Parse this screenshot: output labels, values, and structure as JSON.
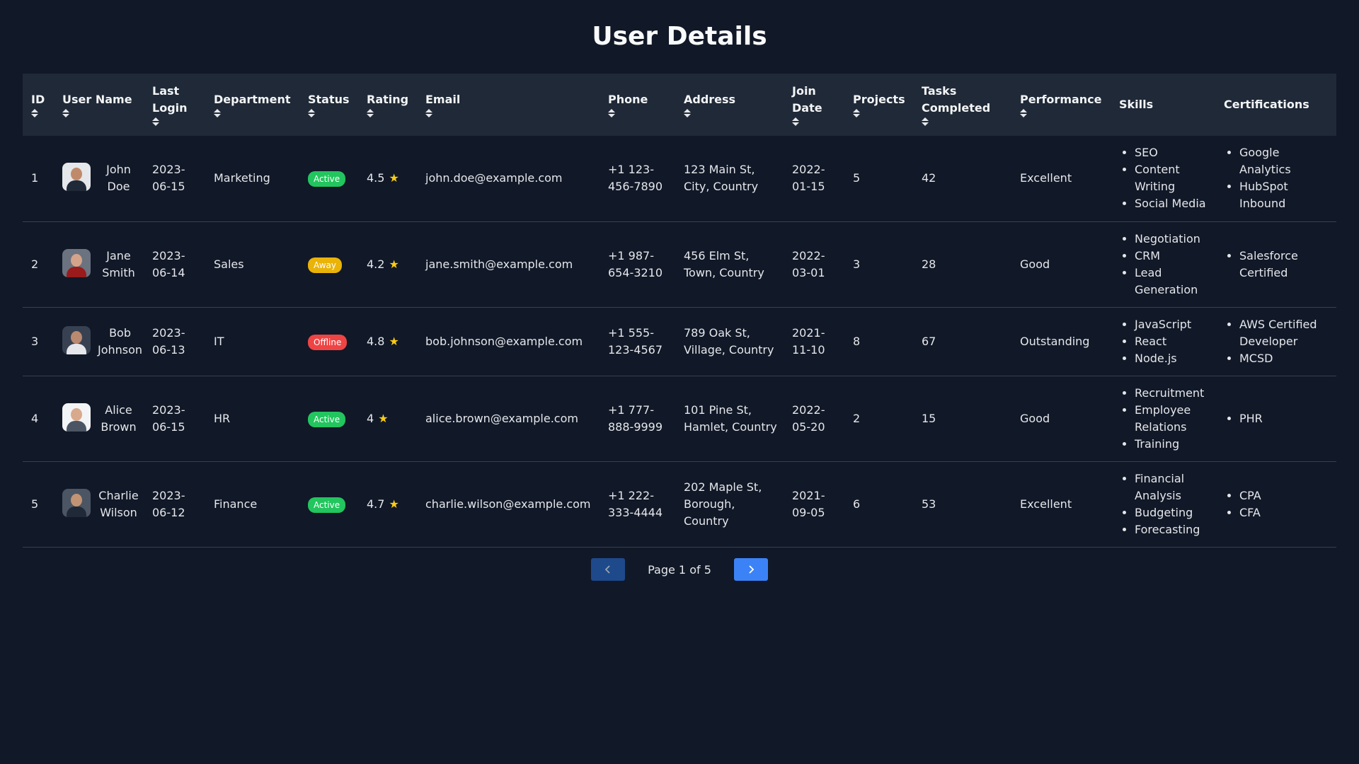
{
  "title": "User Details",
  "columns": [
    {
      "label": "ID",
      "sortable": true
    },
    {
      "label": "User Name",
      "sortable": true
    },
    {
      "label": "Last Login",
      "sortable": true
    },
    {
      "label": "Department",
      "sortable": true
    },
    {
      "label": "Status",
      "sortable": true
    },
    {
      "label": "Rating",
      "sortable": true
    },
    {
      "label": "Email",
      "sortable": true
    },
    {
      "label": "Phone",
      "sortable": true
    },
    {
      "label": "Address",
      "sortable": true
    },
    {
      "label": "Join Date",
      "sortable": true
    },
    {
      "label": "Projects",
      "sortable": true
    },
    {
      "label": "Tasks Completed",
      "sortable": true
    },
    {
      "label": "Performance",
      "sortable": true
    },
    {
      "label": "Skills",
      "sortable": false
    },
    {
      "label": "Certifications",
      "sortable": false
    }
  ],
  "rows": [
    {
      "id": "1",
      "name": "John Doe",
      "avatar_colors": {
        "bg": "#e5e7eb",
        "head": "#c08a6a",
        "body": "#1f2937"
      },
      "last_login": "2023-06-15",
      "department": "Marketing",
      "status": "Active",
      "rating": "4.5",
      "email": "john.doe@example.com",
      "phone": "+1 123-456-7890",
      "address": "123 Main St, City, Country",
      "join_date": "2022-01-15",
      "projects": "5",
      "tasks": "42",
      "performance": "Excellent",
      "skills": [
        "SEO",
        "Content Writing",
        "Social Media"
      ],
      "certifications": [
        "Google Analytics",
        "HubSpot Inbound"
      ]
    },
    {
      "id": "2",
      "name": "Jane Smith",
      "avatar_colors": {
        "bg": "#6b7280",
        "head": "#d4a48a",
        "body": "#991b1b"
      },
      "last_login": "2023-06-14",
      "department": "Sales",
      "status": "Away",
      "rating": "4.2",
      "email": "jane.smith@example.com",
      "phone": "+1 987-654-3210",
      "address": "456 Elm St, Town, Country",
      "join_date": "2022-03-01",
      "projects": "3",
      "tasks": "28",
      "performance": "Good",
      "skills": [
        "Negotiation",
        "CRM",
        "Lead Generation"
      ],
      "certifications": [
        "Salesforce Certified"
      ]
    },
    {
      "id": "3",
      "name": "Bob Johnson",
      "avatar_colors": {
        "bg": "#374151",
        "head": "#b98a70",
        "body": "#e5e7eb"
      },
      "last_login": "2023-06-13",
      "department": "IT",
      "status": "Offline",
      "rating": "4.8",
      "email": "bob.johnson@example.com",
      "phone": "+1 555-123-4567",
      "address": "789 Oak St, Village, Country",
      "join_date": "2021-11-10",
      "projects": "8",
      "tasks": "67",
      "performance": "Outstanding",
      "skills": [
        "JavaScript",
        "React",
        "Node.js"
      ],
      "certifications": [
        "AWS Certified Developer",
        "MCSD"
      ]
    },
    {
      "id": "4",
      "name": "Alice Brown",
      "avatar_colors": {
        "bg": "#f3f4f6",
        "head": "#d9a98c",
        "body": "#4b5563"
      },
      "last_login": "2023-06-15",
      "department": "HR",
      "status": "Active",
      "rating": "4",
      "email": "alice.brown@example.com",
      "phone": "+1 777-888-9999",
      "address": "101 Pine St, Hamlet, Country",
      "join_date": "2022-05-20",
      "projects": "2",
      "tasks": "15",
      "performance": "Good",
      "skills": [
        "Recruitment",
        "Employee Relations",
        "Training"
      ],
      "certifications": [
        "PHR"
      ]
    },
    {
      "id": "5",
      "name": "Charlie Wilson",
      "avatar_colors": {
        "bg": "#4b5563",
        "head": "#c29474",
        "body": "#1f2937"
      },
      "last_login": "2023-06-12",
      "department": "Finance",
      "status": "Active",
      "rating": "4.7",
      "email": "charlie.wilson@example.com",
      "phone": "+1 222-333-4444",
      "address": "202 Maple St, Borough, Country",
      "join_date": "2021-09-05",
      "projects": "6",
      "tasks": "53",
      "performance": "Excellent",
      "skills": [
        "Financial Analysis",
        "Budgeting",
        "Forecasting"
      ],
      "certifications": [
        "CPA",
        "CFA"
      ]
    }
  ],
  "status_colors": {
    "Active": "#22c55e",
    "Away": "#eab308",
    "Offline": "#ef4444"
  },
  "star_icon": "star-icon",
  "pagination": {
    "text": "Page 1 of 5",
    "prev_icon": "chevron-left-icon",
    "next_icon": "chevron-right-icon",
    "prev_color": "#1e4a8c",
    "next_color": "#3b82f6"
  }
}
